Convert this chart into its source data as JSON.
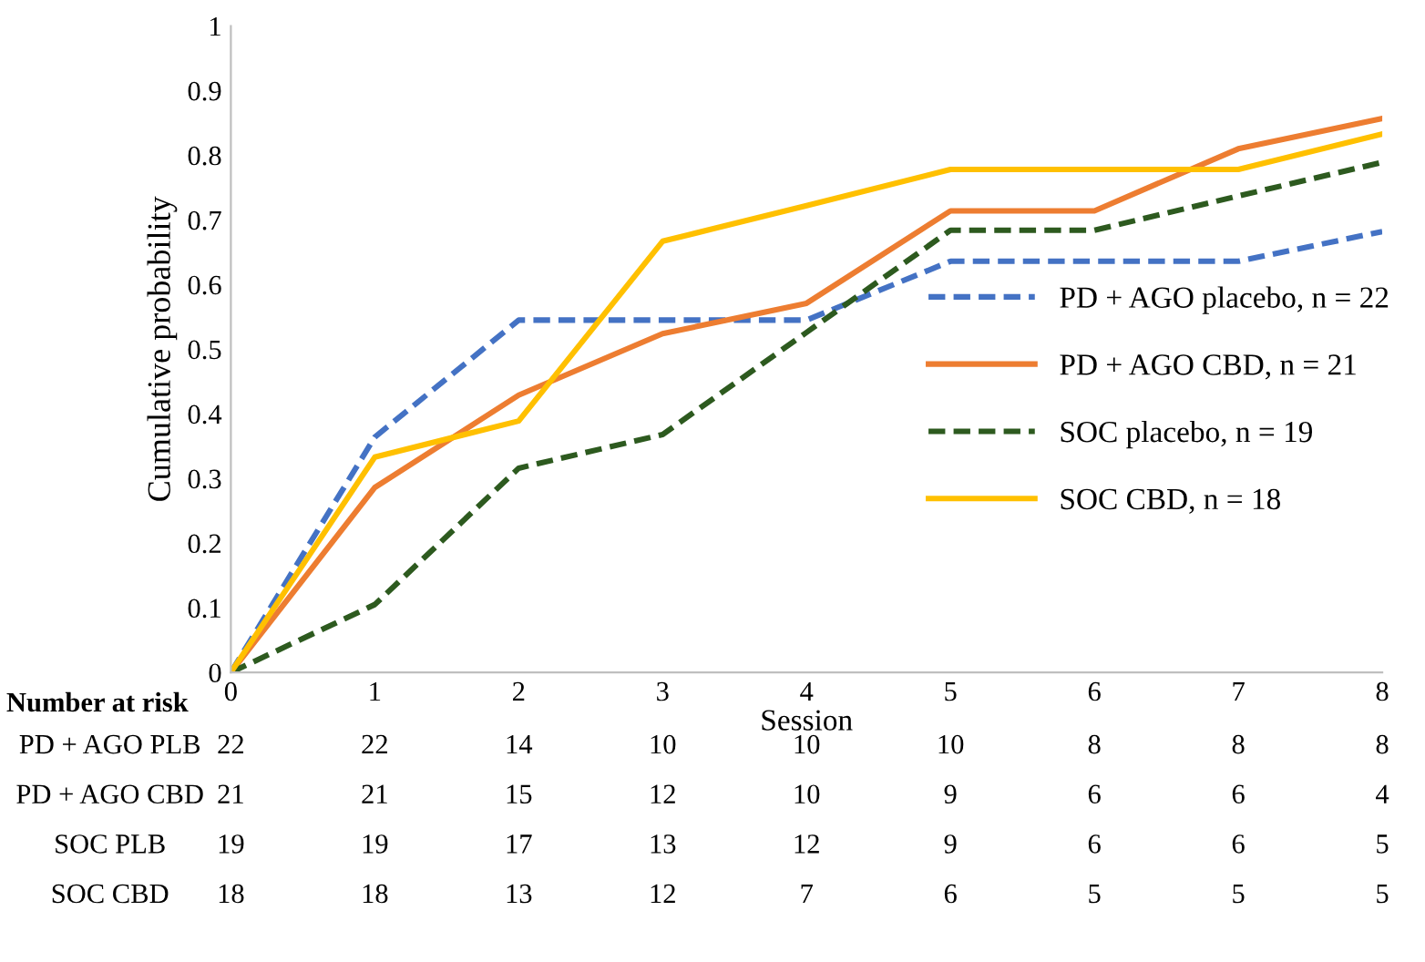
{
  "chart_data": {
    "type": "line",
    "xlabel": "Session",
    "ylabel": "Cumulative probability",
    "x": [
      0,
      1,
      2,
      3,
      4,
      5,
      6,
      7,
      8
    ],
    "series": [
      {
        "name": "PD + AGO placebo, n = 22",
        "color": "#4472c4",
        "line_style": "dashed",
        "values": [
          0,
          0.364,
          0.545,
          0.545,
          0.545,
          0.636,
          0.636,
          0.636,
          0.682
        ]
      },
      {
        "name": "PD + AGO CBD, n = 21",
        "color": "#ed7d31",
        "line_style": "solid",
        "values": [
          0,
          0.286,
          0.429,
          0.524,
          0.571,
          0.714,
          0.714,
          0.81,
          0.857
        ]
      },
      {
        "name": "SOC placebo, n = 19",
        "color": "#2d5a1f",
        "line_style": "dashed",
        "values": [
          0,
          0.105,
          0.316,
          0.368,
          0.526,
          0.684,
          0.684,
          0.737,
          0.789
        ]
      },
      {
        "name": "SOC CBD, n = 18",
        "color": "#ffc000",
        "line_style": "solid",
        "values": [
          0,
          0.333,
          0.389,
          0.667,
          0.722,
          0.778,
          0.778,
          0.778,
          0.833
        ]
      }
    ],
    "xlim": [
      0,
      8
    ],
    "xticks": [
      0,
      1,
      2,
      3,
      4,
      5,
      6,
      7,
      8
    ],
    "ylim": [
      0,
      1
    ],
    "yticks": [
      0,
      0.1,
      0.2,
      0.3,
      0.4,
      0.5,
      0.6,
      0.7,
      0.8,
      0.9,
      1
    ],
    "grid": false,
    "legend": "right",
    "marker": "none",
    "annotations": [
      "Number at risk",
      "PD + AGO PLB",
      "22",
      "22",
      "14",
      "10",
      "10",
      "10",
      "8",
      "8",
      "8",
      "PD + AGO CBD",
      "21",
      "21",
      "15",
      "12",
      "10",
      "9",
      "6",
      "6",
      "4",
      "SOC PLB",
      "19",
      "19",
      "17",
      "13",
      "12",
      "9",
      "6",
      "6",
      "5",
      "SOC CBD",
      "18",
      "18",
      "13",
      "12",
      "7",
      "6",
      "5",
      "5",
      "5"
    ]
  }
}
